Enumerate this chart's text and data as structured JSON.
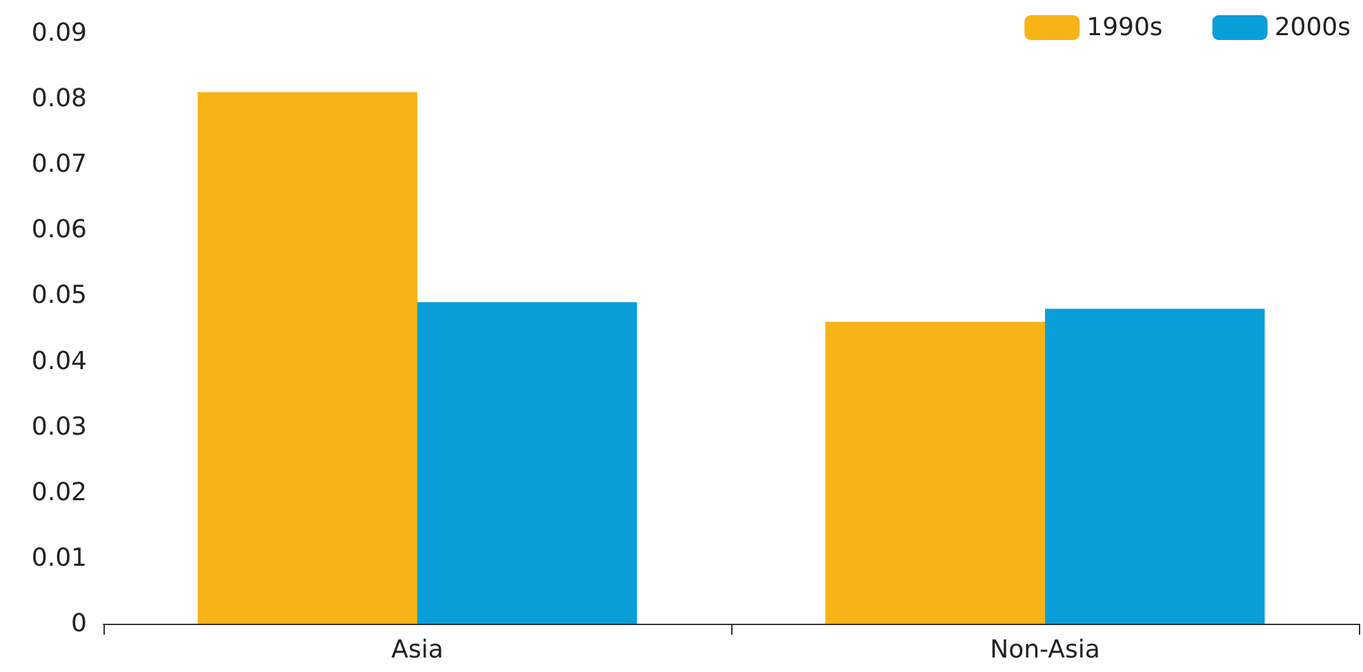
{
  "chart_data": {
    "type": "bar",
    "categories": [
      "Asia",
      "Non-Asia"
    ],
    "series": [
      {
        "name": "1990s",
        "color": "#f8b316",
        "values": [
          0.081,
          0.046
        ]
      },
      {
        "name": "2000s",
        "color": "#0a9fd8",
        "values": [
          0.049,
          0.048
        ]
      }
    ],
    "ylim": [
      0,
      0.09
    ],
    "yticks": [
      0,
      0.01,
      0.02,
      0.03,
      0.04,
      0.05,
      0.06,
      0.07,
      0.08,
      0.09
    ],
    "grid": false,
    "legend": "top right"
  }
}
